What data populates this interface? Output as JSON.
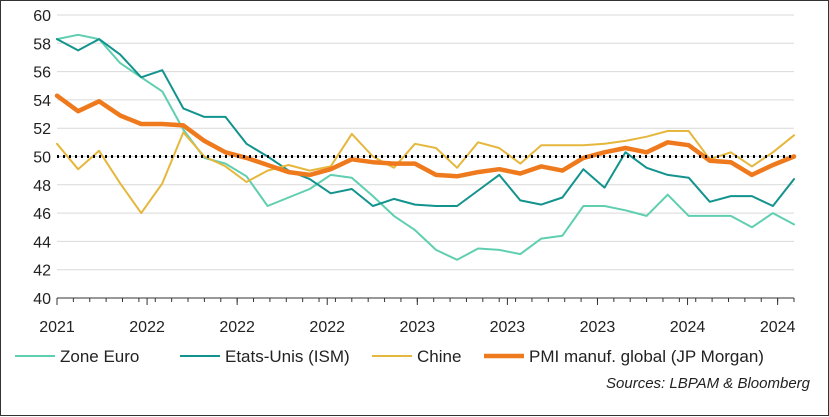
{
  "chart_data": {
    "type": "line",
    "ylim": [
      40,
      60
    ],
    "y_ticks": [
      40,
      42,
      44,
      46,
      48,
      50,
      52,
      54,
      56,
      58,
      60
    ],
    "x_range": [
      0,
      45
    ],
    "x_tick_labels": [
      "2021",
      "2022",
      "2022",
      "2022",
      "2023",
      "2023",
      "2023",
      "2024",
      "2024"
    ],
    "grid": "horizontal",
    "legend_position": "bottom",
    "reference_line": {
      "y": 50,
      "style": "dotted"
    },
    "series": [
      {
        "name": "Zone Euro",
        "color": "#5fcfb0",
        "width": 2,
        "values": [
          58.3,
          58.6,
          58.3,
          56.6,
          55.6,
          54.6,
          51.9,
          49.9,
          49.5,
          48.6,
          46.5,
          47.1,
          47.7,
          48.7,
          48.5,
          47.2,
          45.8,
          44.8,
          43.4,
          42.7,
          43.5,
          43.4,
          43.1,
          44.2,
          44.4,
          46.5,
          46.5,
          46.2,
          45.8,
          47.3,
          45.8,
          45.8,
          45.8,
          45.0,
          46.0,
          45.2
        ]
      },
      {
        "name": "Etats-Unis (ISM)",
        "color": "#13938e",
        "width": 2,
        "values": [
          58.3,
          57.5,
          58.3,
          57.2,
          55.6,
          56.1,
          53.4,
          52.8,
          52.8,
          50.9,
          50.0,
          49.0,
          48.4,
          47.4,
          47.7,
          46.5,
          47.0,
          46.6,
          46.5,
          46.5,
          47.6,
          48.7,
          46.9,
          46.6,
          47.1,
          49.1,
          47.8,
          50.3,
          49.2,
          48.7,
          48.5,
          46.8,
          47.2,
          47.2,
          46.5,
          48.4
        ]
      },
      {
        "name": "Chine",
        "color": "#e6b73d",
        "width": 2,
        "values": [
          50.9,
          49.1,
          50.4,
          48.1,
          46.0,
          48.1,
          51.7,
          50.0,
          49.3,
          48.2,
          49.0,
          49.4,
          49.0,
          49.3,
          51.6,
          50.0,
          49.2,
          50.9,
          50.6,
          49.2,
          51.0,
          50.6,
          49.5,
          50.8,
          50.8,
          50.8,
          50.9,
          51.1,
          51.4,
          51.8,
          51.8,
          49.8,
          50.3,
          49.3,
          50.3,
          51.5
        ]
      },
      {
        "name": "PMI manuf. global (JP Morgan)",
        "color": "#ee7a1d",
        "width": 4.5,
        "values": [
          54.3,
          53.2,
          53.9,
          52.9,
          52.3,
          52.3,
          52.2,
          51.1,
          50.3,
          49.9,
          49.4,
          48.9,
          48.7,
          49.1,
          49.8,
          49.6,
          49.5,
          49.5,
          48.7,
          48.6,
          48.9,
          49.1,
          48.8,
          49.3,
          49.0,
          49.9,
          50.3,
          50.6,
          50.3,
          51.0,
          50.8,
          49.7,
          49.6,
          48.7,
          49.4,
          50.0
        ]
      }
    ]
  },
  "source_text": "Sources: LBPAM & Bloomberg"
}
